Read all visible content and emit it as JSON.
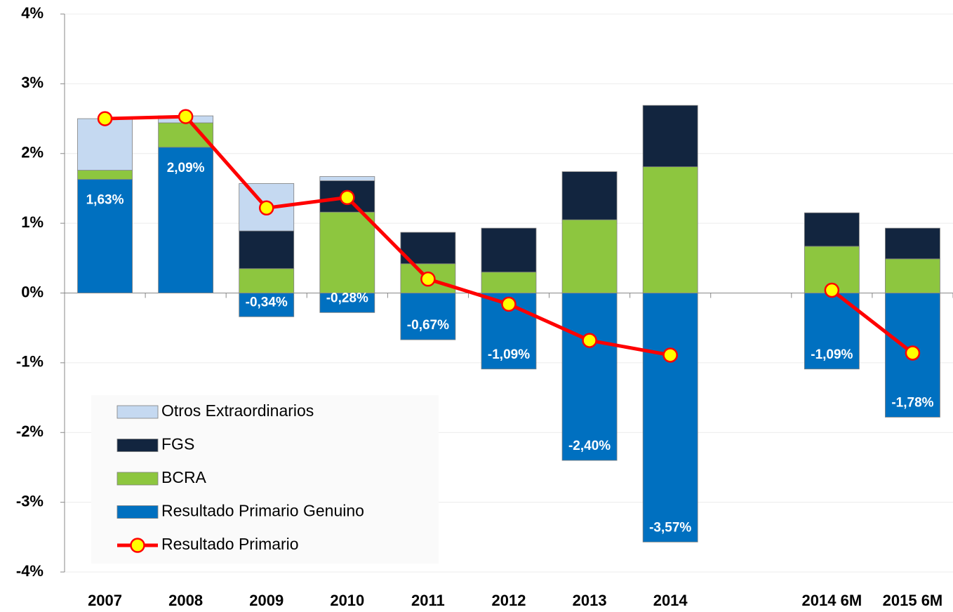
{
  "chart_data": {
    "type": "bar",
    "categories": [
      "2007",
      "2008",
      "2009",
      "2010",
      "2011",
      "2012",
      "2013",
      "2014",
      null,
      "2014 6M",
      "2015 6M"
    ],
    "series": [
      {
        "name": "Resultado Primario Genuino",
        "color": "#0070c0",
        "type": "bar",
        "values": [
          1.63,
          2.09,
          -0.34,
          -0.28,
          -0.67,
          -1.09,
          -2.4,
          -3.57,
          null,
          -1.09,
          -1.78
        ],
        "value_labels": [
          "1,63%",
          "2,09%",
          "-0,34%",
          "-0,28%",
          "-0,67%",
          "-1,09%",
          "-2,40%",
          "-3,57%",
          null,
          "-1,09%",
          "-1,78%"
        ]
      },
      {
        "name": "BCRA",
        "color": "#8dc63f",
        "type": "bar",
        "values": [
          0.13,
          0.35,
          0.35,
          1.16,
          0.42,
          0.3,
          1.05,
          1.81,
          null,
          0.67,
          0.49
        ]
      },
      {
        "name": "FGS",
        "color": "#12253f",
        "type": "bar",
        "values": [
          0,
          0,
          0.54,
          0.45,
          0.45,
          0.63,
          0.69,
          0.88,
          null,
          0.48,
          0.44
        ]
      },
      {
        "name": "Otros Extraordinarios",
        "color": "#c5d9f1",
        "type": "bar",
        "values": [
          0.74,
          0.1,
          0.68,
          0.06,
          0,
          0,
          0,
          0,
          null,
          0,
          0
        ]
      },
      {
        "name": "Resultado Primario",
        "color": "#ff0000",
        "marker_color": "#ffff00",
        "type": "line",
        "values": [
          2.5,
          2.53,
          1.22,
          1.37,
          0.2,
          -0.16,
          -0.68,
          -0.89,
          null,
          0.04,
          -0.86
        ]
      }
    ],
    "ylim": [
      -4,
      4
    ],
    "yticks": [
      {
        "value": -4,
        "label": "-4%"
      },
      {
        "value": -3,
        "label": "-3%"
      },
      {
        "value": -2,
        "label": "-2%"
      },
      {
        "value": -1,
        "label": "-1%"
      },
      {
        "value": 0,
        "label": "0%"
      },
      {
        "value": 1,
        "label": "1%"
      },
      {
        "value": 2,
        "label": "2%"
      },
      {
        "value": 3,
        "label": "3%"
      },
      {
        "value": 4,
        "label": "4%"
      }
    ],
    "grid": true,
    "legend": "lower-left"
  }
}
